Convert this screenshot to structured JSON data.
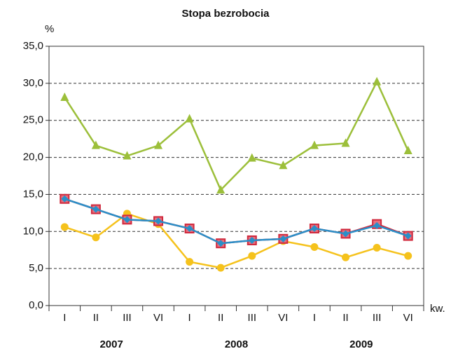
{
  "chart_data": {
    "type": "line",
    "title": "Stopa bezrobocia",
    "y_unit": "%",
    "x_unit": "kw.",
    "categories": [
      "I",
      "II",
      "III",
      "VI",
      "I",
      "II",
      "III",
      "VI",
      "I",
      "II",
      "III",
      "VI"
    ],
    "groups": [
      "2007",
      "2008",
      "2009"
    ],
    "ylim": [
      0,
      35
    ],
    "yticks": [
      {
        "value": 0,
        "label": "0,0"
      },
      {
        "value": 5,
        "label": "5,0"
      },
      {
        "value": 10,
        "label": "10,0"
      },
      {
        "value": 15,
        "label": "15,0"
      },
      {
        "value": 20,
        "label": "20,0"
      },
      {
        "value": 25,
        "label": "25,0"
      },
      {
        "value": 30,
        "label": "30,0"
      },
      {
        "value": 35,
        "label": "35,0"
      }
    ],
    "grid": true,
    "series": [
      {
        "color": "#9cbf3a",
        "marker": "triangle",
        "values": [
          28.1,
          21.6,
          20.2,
          21.6,
          25.2,
          15.6,
          19.9,
          18.9,
          21.6,
          21.9,
          30.2,
          20.9
        ]
      },
      {
        "color": "#f5c21c",
        "marker": "circle",
        "values": [
          10.6,
          9.2,
          12.4,
          11.0,
          5.9,
          5.1,
          6.7,
          8.7,
          7.9,
          6.5,
          7.8,
          6.7
        ]
      },
      {
        "color": "#d0283c",
        "marker": "square",
        "values": [
          14.4,
          13.0,
          11.6,
          11.4,
          10.4,
          8.4,
          8.8,
          9.0,
          10.4,
          9.7,
          11.0,
          9.4
        ]
      },
      {
        "color": "#2a8fc8",
        "marker": "diamond",
        "values": [
          14.4,
          13.0,
          11.6,
          11.4,
          10.4,
          8.4,
          8.8,
          9.0,
          10.4,
          9.7,
          10.8,
          9.4
        ]
      }
    ]
  }
}
